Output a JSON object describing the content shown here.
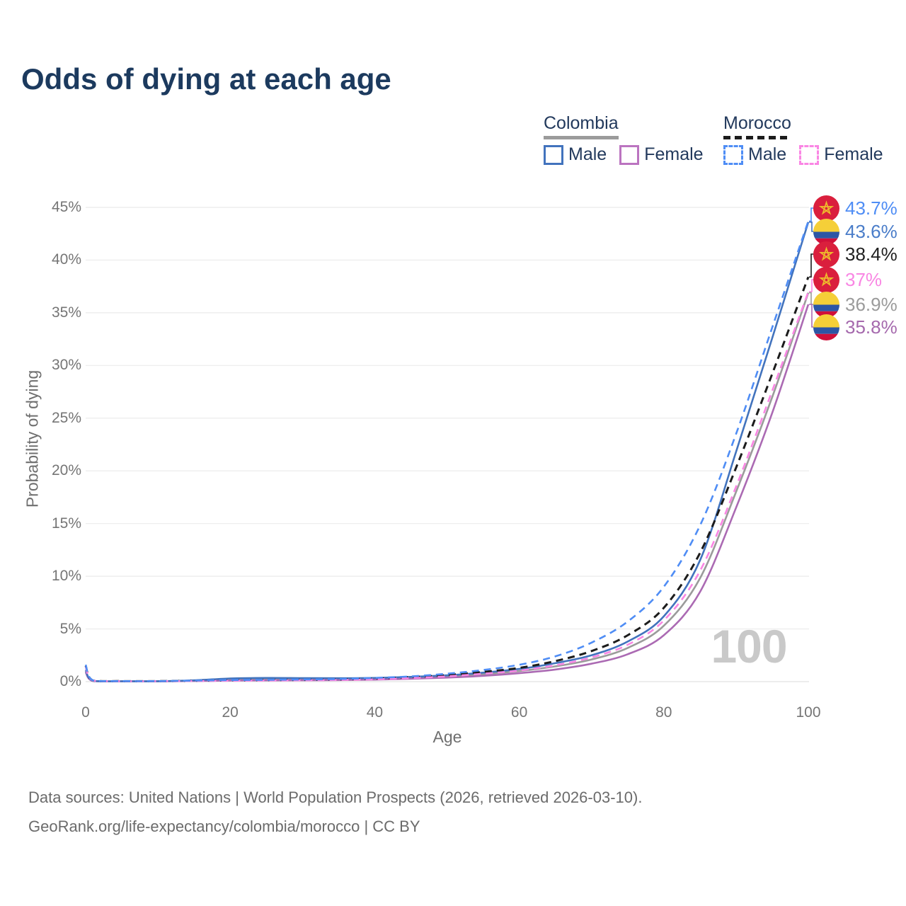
{
  "title": "Odds of dying at each age",
  "watermark_age": "100",
  "legend": {
    "groups": [
      {
        "country": "Colombia",
        "line_style": "solid",
        "line_color": "#9b9b9b",
        "items": [
          {
            "label": "Male",
            "color": "#4273bd",
            "dashed": false
          },
          {
            "label": "Female",
            "color": "#bb74c0",
            "dashed": false
          }
        ]
      },
      {
        "country": "Morocco",
        "line_style": "dashed",
        "line_color": "#1c1c1c",
        "items": [
          {
            "label": "Male",
            "color": "#4f8df5",
            "dashed": true
          },
          {
            "label": "Female",
            "color": "#fa86e4",
            "dashed": true
          }
        ]
      }
    ]
  },
  "footer": {
    "line1": "Data sources: United Nations | World Population Prospects (2026, retrieved 2026-03-10).",
    "line2": "GeoRank.org/life-expectancy/colombia/morocco | CC BY"
  },
  "chart_data": {
    "type": "line",
    "title": "Odds of dying at each age",
    "xlabel": "Age",
    "ylabel": "Probability of dying",
    "xlim": [
      0,
      100
    ],
    "ylim": [
      0,
      45
    ],
    "x_ticks": [
      0,
      20,
      40,
      60,
      80,
      100
    ],
    "y_ticks": [
      0,
      5,
      10,
      15,
      20,
      25,
      30,
      35,
      40,
      45
    ],
    "y_tick_suffix": "%",
    "grid": "horizontal",
    "legend_position": "top-right",
    "ages": [
      0,
      1,
      5,
      10,
      15,
      20,
      25,
      30,
      35,
      40,
      45,
      50,
      55,
      60,
      65,
      70,
      75,
      80,
      85,
      90,
      95,
      100
    ],
    "series": [
      {
        "name": "Colombia Total",
        "country": "Colombia",
        "sex": "total",
        "color": "#9b9b9b",
        "dashed": false,
        "flag": "colombia",
        "end_label": "36.9%",
        "end_value": 36.9,
        "end_label_color": "#9b9b9b",
        "values": [
          1.0,
          0.07,
          0.03,
          0.035,
          0.09,
          0.2,
          0.23,
          0.22,
          0.23,
          0.26,
          0.35,
          0.48,
          0.7,
          1.0,
          1.45,
          2.1,
          3.2,
          5.3,
          9.8,
          18.0,
          27.0,
          36.9
        ]
      },
      {
        "name": "Colombia Female",
        "country": "Colombia",
        "sex": "female",
        "color": "#ab6ab3",
        "dashed": false,
        "flag": "colombia",
        "end_label": "35.8%",
        "end_value": 35.8,
        "end_label_color": "#a569ad",
        "values": [
          0.9,
          0.06,
          0.028,
          0.03,
          0.06,
          0.1,
          0.12,
          0.13,
          0.15,
          0.19,
          0.27,
          0.38,
          0.55,
          0.8,
          1.15,
          1.7,
          2.6,
          4.4,
          8.5,
          16.5,
          25.5,
          35.8
        ]
      },
      {
        "name": "Colombia Male",
        "country": "Colombia",
        "sex": "male",
        "color": "#4273bd",
        "dashed": false,
        "flag": "colombia",
        "end_label": "43.6%",
        "end_value": 43.6,
        "end_label_color": "#4a7dc9",
        "values": [
          1.1,
          0.08,
          0.035,
          0.04,
          0.12,
          0.3,
          0.35,
          0.33,
          0.32,
          0.35,
          0.45,
          0.6,
          0.85,
          1.2,
          1.75,
          2.5,
          3.8,
          6.2,
          11.5,
          21.8,
          32.6,
          43.6
        ]
      },
      {
        "name": "Morocco Total",
        "country": "Morocco",
        "sex": "total",
        "color": "#1c1c1c",
        "dashed": true,
        "flag": "morocco",
        "end_label": "38.4%",
        "end_value": 38.4,
        "end_label_color": "#1f1f1f",
        "values": [
          1.5,
          0.11,
          0.045,
          0.045,
          0.08,
          0.12,
          0.14,
          0.16,
          0.2,
          0.28,
          0.42,
          0.62,
          0.92,
          1.3,
          1.95,
          2.9,
          4.4,
          7.0,
          12.2,
          20.3,
          29.2,
          38.4
        ]
      },
      {
        "name": "Morocco Female",
        "country": "Morocco",
        "sex": "female",
        "color": "#fa86e4",
        "dashed": true,
        "flag": "morocco",
        "end_label": "37%",
        "end_value": 37.0,
        "end_label_color": "#f986e3",
        "values": [
          1.4,
          0.1,
          0.04,
          0.04,
          0.06,
          0.08,
          0.1,
          0.12,
          0.16,
          0.22,
          0.33,
          0.5,
          0.75,
          1.05,
          1.55,
          2.3,
          3.5,
          5.8,
          10.5,
          18.5,
          27.6,
          37.0
        ]
      },
      {
        "name": "Morocco Male",
        "country": "Morocco",
        "sex": "male",
        "color": "#4f8df5",
        "dashed": true,
        "flag": "morocco",
        "end_label": "43.7%",
        "end_value": 43.7,
        "end_label_color": "#4f8df5",
        "values": [
          1.6,
          0.12,
          0.05,
          0.05,
          0.1,
          0.15,
          0.17,
          0.2,
          0.25,
          0.35,
          0.5,
          0.75,
          1.1,
          1.6,
          2.4,
          3.7,
          5.7,
          9.0,
          14.8,
          23.5,
          33.6,
          43.7
        ]
      }
    ]
  }
}
